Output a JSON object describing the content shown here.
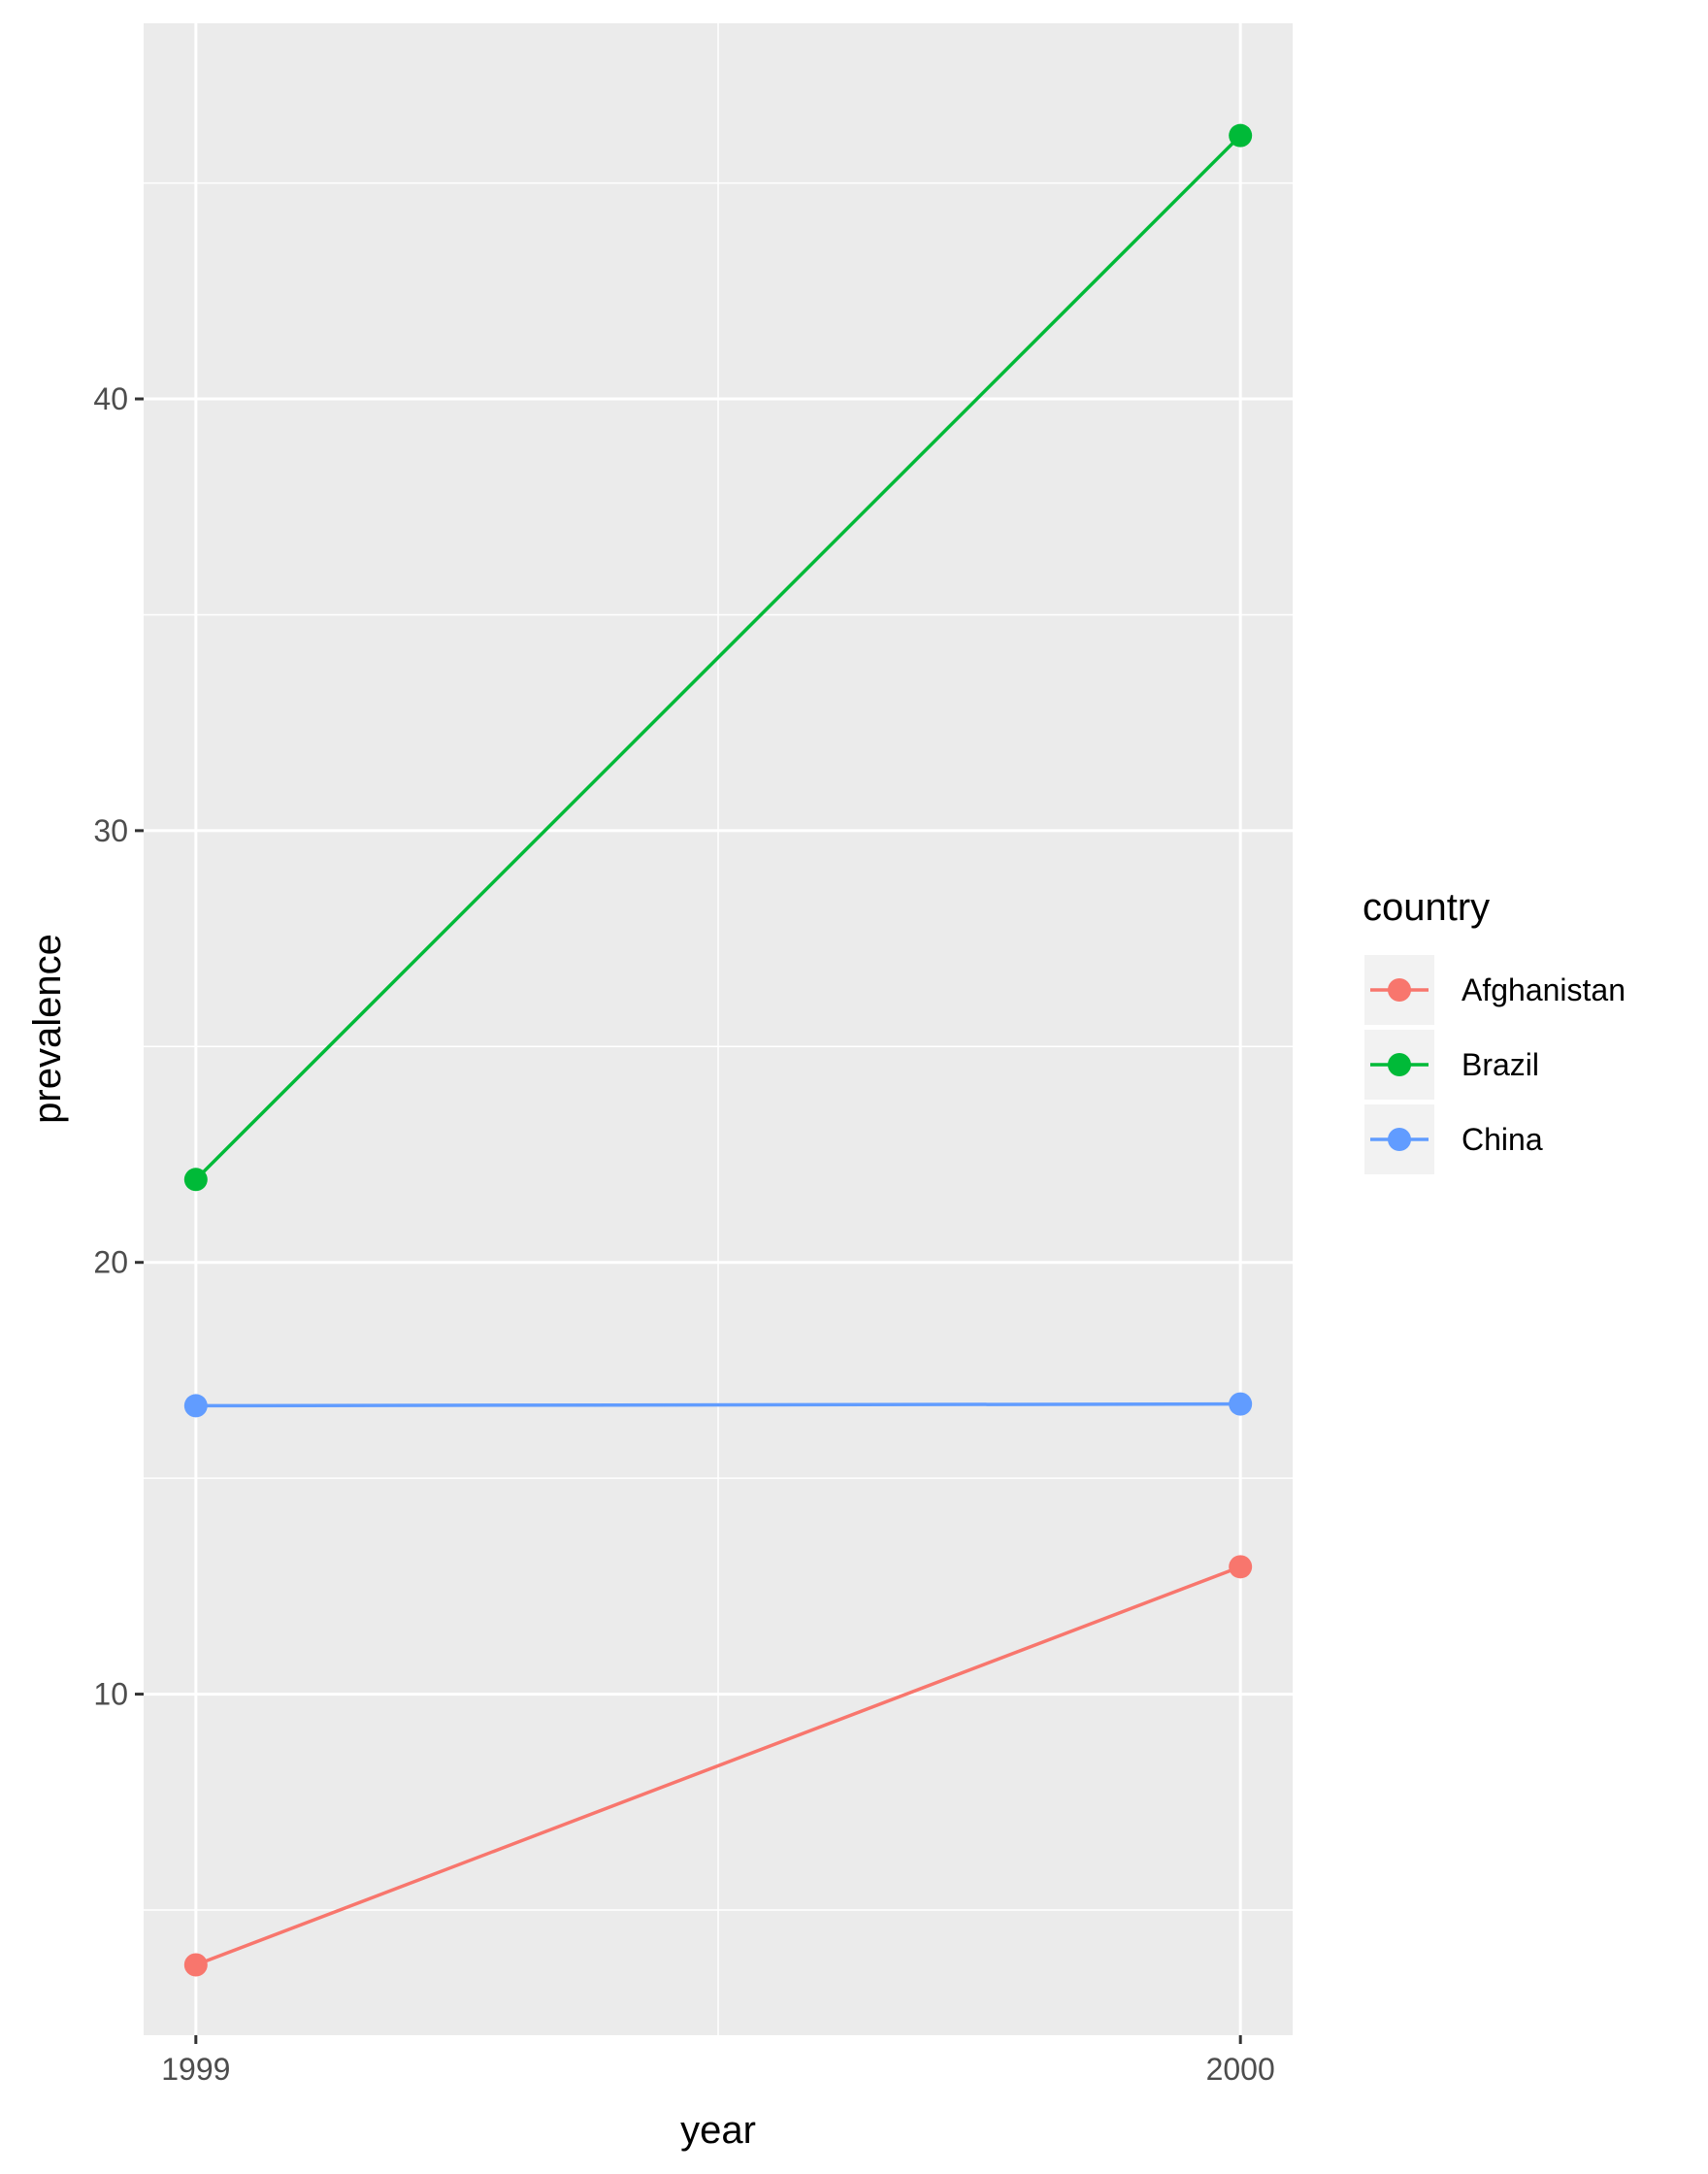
{
  "chart_data": {
    "type": "line",
    "title": "",
    "xlabel": "year",
    "ylabel": "prevalence",
    "x": [
      1999,
      2000
    ],
    "x_tick_labels": [
      "1999",
      "2000"
    ],
    "xlim": [
      1998.95,
      2000.05
    ],
    "y_ticks": [
      10,
      20,
      30,
      40
    ],
    "y_tick_labels": [
      "10",
      "20",
      "30",
      "40"
    ],
    "ylim": [
      2.1,
      48.7
    ],
    "grid": true,
    "legend": {
      "title": "country",
      "placement": "right"
    },
    "series": [
      {
        "name": "Afghanistan",
        "color": "#F8766D",
        "values": [
          3.73,
          12.95
        ]
      },
      {
        "name": "Brazil",
        "color": "#00BA38",
        "values": [
          21.92,
          46.1
        ]
      },
      {
        "name": "China",
        "color": "#619CFF",
        "values": [
          16.68,
          16.72
        ]
      }
    ]
  }
}
